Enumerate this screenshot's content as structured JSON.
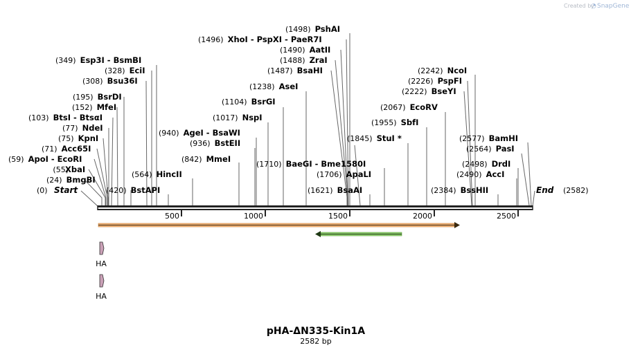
{
  "credit": {
    "prefix": "Created by",
    "brand": "SnapGene"
  },
  "plasmid": {
    "name": "pHA-ΔN335-Kin1A",
    "length_label": "2582 bp",
    "length": 2582
  },
  "terminals": {
    "start": "Start",
    "end": "End",
    "start_pos": "(0)",
    "end_pos": "(2582)"
  },
  "ticks": [
    "500",
    "1000",
    "1500",
    "2000",
    "2500"
  ],
  "features": [
    {
      "label": "HA"
    },
    {
      "label": "HA"
    }
  ],
  "enzymes": [
    {
      "pos": "(24)",
      "name": "BmgBI"
    },
    {
      "pos": "(55)",
      "name": "XbaI"
    },
    {
      "pos": "(59)",
      "name": "ApoI  -  EcoRI"
    },
    {
      "pos": "(71)",
      "name": "Acc65I"
    },
    {
      "pos": "(75)",
      "name": "KpnI"
    },
    {
      "pos": "(77)",
      "name": "NdeI"
    },
    {
      "pos": "(103)",
      "name": "BtsI  -  BtsαI"
    },
    {
      "pos": "(152)",
      "name": "MfeI"
    },
    {
      "pos": "(195)",
      "name": "BsrDI"
    },
    {
      "pos": "(308)",
      "name": "Bsu36I"
    },
    {
      "pos": "(328)",
      "name": "EciI"
    },
    {
      "pos": "(349)",
      "name": "Esp3I  -  BsmBI"
    },
    {
      "pos": "(420)",
      "name": "BstAPI"
    },
    {
      "pos": "(564)",
      "name": "HincII"
    },
    {
      "pos": "(842)",
      "name": "MmeI"
    },
    {
      "pos": "(936)",
      "name": "BstEII"
    },
    {
      "pos": "(940)",
      "name": "AgeI  -  BsaWI"
    },
    {
      "pos": "(1017)",
      "name": "NspI"
    },
    {
      "pos": "(1104)",
      "name": "BsrGI"
    },
    {
      "pos": "(1238)",
      "name": "AseI"
    },
    {
      "pos": "(1487)",
      "name": "BsaHI"
    },
    {
      "pos": "(1488)",
      "name": "ZraI"
    },
    {
      "pos": "(1490)",
      "name": "AatII"
    },
    {
      "pos": "(1496)",
      "name": "XhoI  -  PspXI  -  PaeR7I"
    },
    {
      "pos": "(1498)",
      "name": "PshAI"
    },
    {
      "pos": "(1621)",
      "name": "BsaAI"
    },
    {
      "pos": "(1706)",
      "name": "ApaLI"
    },
    {
      "pos": "(1710)",
      "name": "BaeGI  -  Bme1580I"
    },
    {
      "pos": "(1845)",
      "name": "StuI *"
    },
    {
      "pos": "(1955)",
      "name": "SbfI"
    },
    {
      "pos": "(2067)",
      "name": "EcoRV"
    },
    {
      "pos": "(2222)",
      "name": "BseYI"
    },
    {
      "pos": "(2226)",
      "name": "PspFI"
    },
    {
      "pos": "(2242)",
      "name": "NcoI"
    },
    {
      "pos": "(2384)",
      "name": "BssHII"
    },
    {
      "pos": "(2490)",
      "name": "AccI"
    },
    {
      "pos": "(2498)",
      "name": "DrdI"
    },
    {
      "pos": "(2564)",
      "name": "PasI"
    },
    {
      "pos": "(2577)",
      "name": "BamHI"
    }
  ],
  "colors": {
    "backbone": "#222222",
    "orange_feature": "#f2b37a",
    "green_feature": "#90d070",
    "ha_feature": "#c9a0b6",
    "leader": "#666666"
  }
}
